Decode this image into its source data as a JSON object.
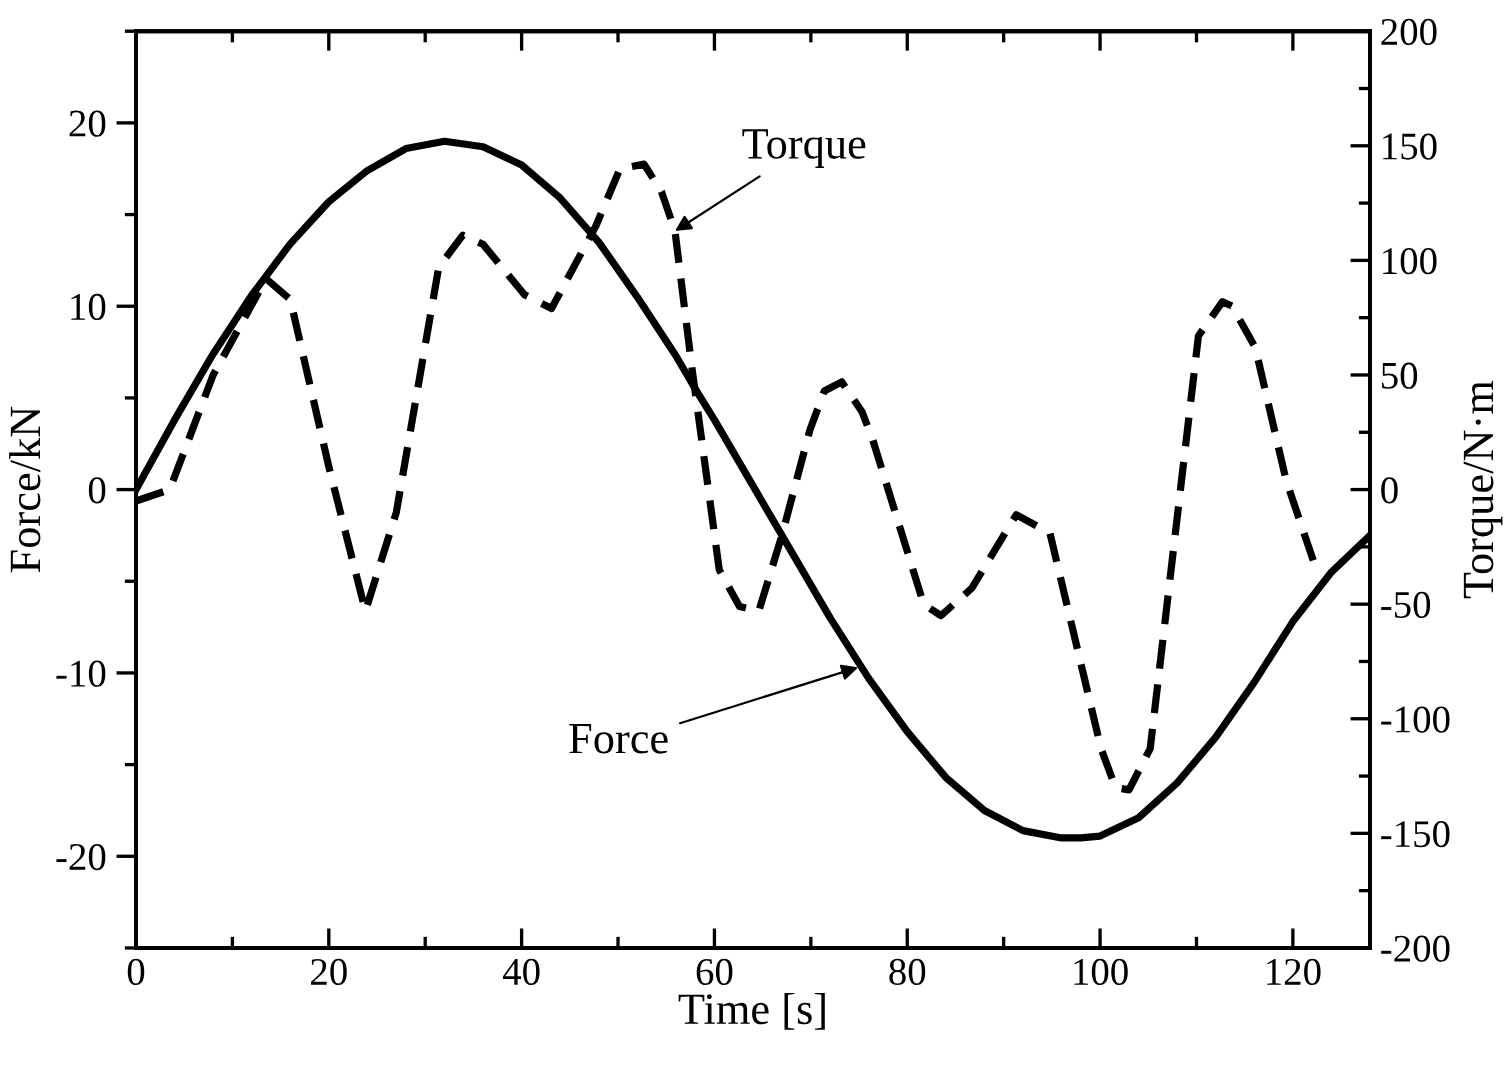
{
  "chart_data": {
    "type": "line",
    "xlabel": "Time [s]",
    "ylabel": "Force/kN",
    "y2label": "Torque/N·m",
    "xlim": [
      0,
      128
    ],
    "xticks": [
      0,
      20,
      40,
      60,
      80,
      100,
      120
    ],
    "ylim": [
      -25,
      25
    ],
    "yticks": [
      -20,
      -10,
      0,
      10,
      20
    ],
    "y2lim": [
      -200,
      200
    ],
    "y2ticks": [
      -200,
      -150,
      -100,
      -50,
      0,
      50,
      100,
      150,
      200
    ],
    "grid": false,
    "marker": "none",
    "series": [
      {
        "color": "#000000",
        "line_style": "solid",
        "x": [
          0,
          4,
          8,
          12,
          16,
          20,
          24,
          28,
          32,
          36,
          40,
          44,
          48,
          52,
          56,
          58,
          60,
          64,
          68,
          72,
          76,
          80,
          84,
          88,
          92,
          96,
          98,
          100,
          104,
          108,
          112,
          116,
          120,
          124,
          128
        ],
        "values": [
          0,
          3.8,
          7.4,
          10.6,
          13.4,
          15.7,
          17.4,
          18.6,
          19,
          18.7,
          17.7,
          15.9,
          13.5,
          10.5,
          7.3,
          5.5,
          3.8,
          0.2,
          -3.4,
          -7,
          -10.3,
          -13.2,
          -15.7,
          -17.5,
          -18.6,
          -19,
          -19,
          -18.9,
          -17.9,
          -16,
          -13.5,
          -10.5,
          -7.2,
          -4.5,
          -2.5
        ]
      },
      {
        "color": "#000000",
        "line_style": "dashed",
        "axis": "y2",
        "x": [
          0,
          3.5,
          8,
          13.5,
          16,
          20,
          23.8,
          27,
          31.4,
          33.9,
          36,
          40.3,
          43.1,
          47.7,
          50.2,
          52.7,
          54.5,
          55.9,
          57.7,
          60.5,
          62.6,
          64.6,
          67,
          69.9,
          71.4,
          73.2,
          75.3,
          76.4,
          81.7,
          83.5,
          86.7,
          91.3,
          94.8,
          100.1,
          101.6,
          103,
          105.2,
          110.2,
          112.7,
          113.7,
          116.1,
          119.3,
          122.2
        ],
        "values": [
          -5,
          0,
          50,
          92,
          83,
          10,
          -53,
          -10,
          97,
          111,
          107,
          85,
          79,
          115,
          140,
          142,
          130,
          113,
          52,
          -35,
          -51,
          -53,
          -20,
          26,
          43,
          47,
          34,
          22,
          -50,
          -55,
          -43,
          -11,
          -19,
          -113,
          -130,
          -131,
          -113,
          67,
          82,
          80,
          62,
          4,
          -32
        ]
      }
    ],
    "annotations": [
      {
        "text": "Torque",
        "x": 55.9,
        "y": 14.1
      },
      {
        "text": "Force",
        "x": 74.9,
        "y": -9.7
      }
    ]
  }
}
